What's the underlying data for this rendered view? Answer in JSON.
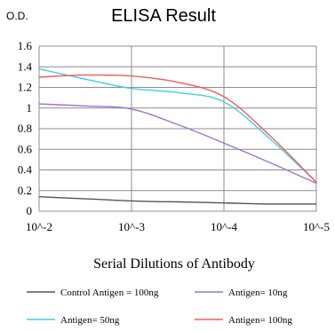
{
  "chart_data": {
    "type": "line",
    "title": "ELISA Result",
    "ylabel": "O.D.",
    "xlabel": "Serial Dilutions of Antibody",
    "x_categories": [
      "10^-2",
      "10^-3",
      "10^-4",
      "10^-5"
    ],
    "x_log_exponents": [
      -2,
      -3,
      -4,
      -5
    ],
    "ylim": [
      0,
      1.6
    ],
    "yticks": [
      "0",
      "0.2",
      "0.4",
      "0.6",
      "0.8",
      "1",
      "1.2",
      "1.4",
      "1.6"
    ],
    "grid": true,
    "legend_position": "bottom",
    "series": [
      {
        "name": "Control Antigen = 100ng",
        "color": "#555555",
        "points": [
          [
            -2,
            0.14
          ],
          [
            -2.5,
            0.12
          ],
          [
            -3,
            0.1
          ],
          [
            -3.5,
            0.09
          ],
          [
            -4,
            0.08
          ],
          [
            -4.5,
            0.07
          ],
          [
            -5,
            0.07
          ]
        ]
      },
      {
        "name": "Antigen= 10ng",
        "color": "#9b73d3",
        "points": [
          [
            -2,
            1.04
          ],
          [
            -2.5,
            1.02
          ],
          [
            -3,
            0.99
          ],
          [
            -3.5,
            0.84
          ],
          [
            -4,
            0.66
          ],
          [
            -4.5,
            0.47
          ],
          [
            -5,
            0.27
          ]
        ]
      },
      {
        "name": "Antigen= 50ng",
        "color": "#3fd0e8",
        "points": [
          [
            -2,
            1.38
          ],
          [
            -2.5,
            1.28
          ],
          [
            -3,
            1.19
          ],
          [
            -3.5,
            1.15
          ],
          [
            -4,
            1.06
          ],
          [
            -4.5,
            0.7
          ],
          [
            -5,
            0.28
          ]
        ]
      },
      {
        "name": "Antigen= 100ng",
        "color": "#f25a5a",
        "points": [
          [
            -2,
            1.3
          ],
          [
            -2.5,
            1.32
          ],
          [
            -3,
            1.31
          ],
          [
            -3.5,
            1.25
          ],
          [
            -4,
            1.11
          ],
          [
            -4.5,
            0.73
          ],
          [
            -5,
            0.28
          ]
        ]
      }
    ]
  }
}
